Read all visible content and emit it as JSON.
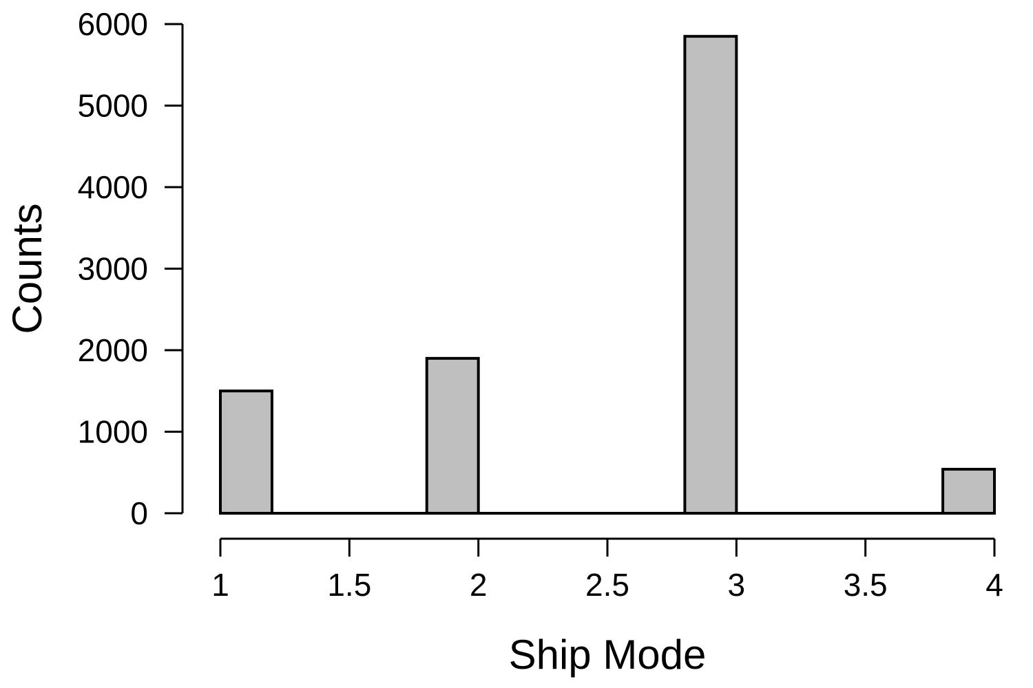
{
  "chart_data": {
    "type": "bar",
    "title": "",
    "xlabel": "Ship Mode",
    "ylabel": "Counts",
    "xlim": [
      1,
      4
    ],
    "ylim": [
      0,
      6000
    ],
    "x_ticks": [
      "1",
      "1.5",
      "2",
      "2.5",
      "3",
      "3.5",
      "4"
    ],
    "y_ticks": [
      "0",
      "1000",
      "2000",
      "3000",
      "4000",
      "5000",
      "6000"
    ],
    "bin_width": 0.2,
    "bars": [
      {
        "x_start": 1.0,
        "x_end": 1.2,
        "value": 1500
      },
      {
        "x_start": 1.8,
        "x_end": 2.0,
        "value": 1900
      },
      {
        "x_start": 2.8,
        "x_end": 3.0,
        "value": 5850
      },
      {
        "x_start": 3.8,
        "x_end": 4.0,
        "value": 540
      }
    ],
    "grid": false,
    "bar_color": "#bfbfbf",
    "edge_color": "#000000"
  }
}
